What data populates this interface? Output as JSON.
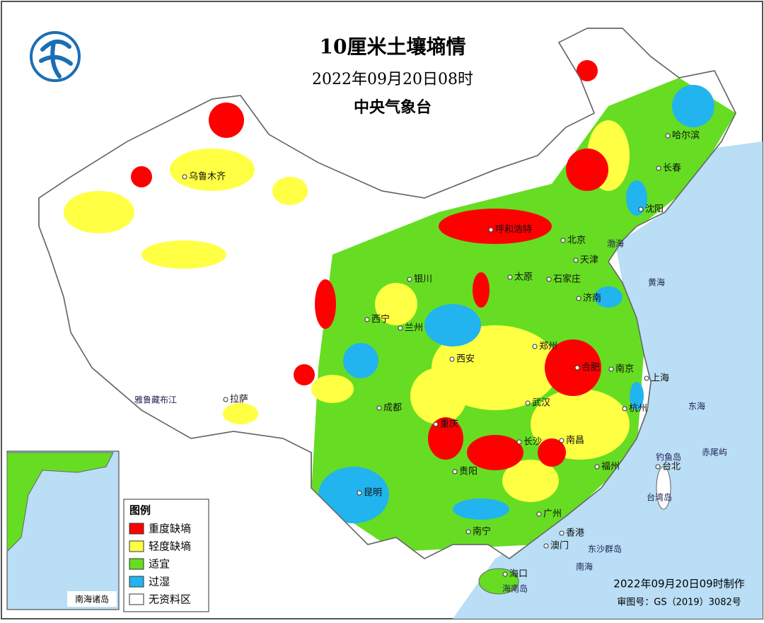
{
  "header": {
    "title": "10厘米土壤墒情",
    "time": "2022年09月20日08时",
    "issuer": "中央气象台"
  },
  "legend": {
    "title": "图例",
    "items": [
      {
        "label": "重度缺墒",
        "color": "#ff0000"
      },
      {
        "label": "轻度缺墒",
        "color": "#ffff44"
      },
      {
        "label": "适宜",
        "color": "#66dd22"
      },
      {
        "label": "过湿",
        "color": "#22b4ee"
      },
      {
        "label": "无资料区",
        "color": "#ffffff"
      }
    ]
  },
  "cities": [
    "哈尔滨",
    "长春",
    "沈阳",
    "北京",
    "天津",
    "呼和浩特",
    "石家庄",
    "太原",
    "济南",
    "银川",
    "西宁",
    "兰州",
    "郑州",
    "西安",
    "合肥",
    "南京",
    "上海",
    "杭州",
    "武汉",
    "成都",
    "重庆",
    "南昌",
    "长沙",
    "贵阳",
    "福州",
    "台北",
    "昆明",
    "南宁",
    "广州",
    "香港",
    "澳门",
    "海口",
    "乌鲁木齐",
    "拉萨"
  ],
  "places": [
    "渤海",
    "黄海",
    "东海",
    "南海",
    "台湾岛",
    "钓鱼岛",
    "赤尾屿",
    "东沙群岛",
    "海南岛",
    "雅鲁藏布江"
  ],
  "inset": {
    "title": "南海诸岛"
  },
  "footer": {
    "made": "2022年09月20日09时制作",
    "approval": "审图号：GS（2019）3082号"
  }
}
